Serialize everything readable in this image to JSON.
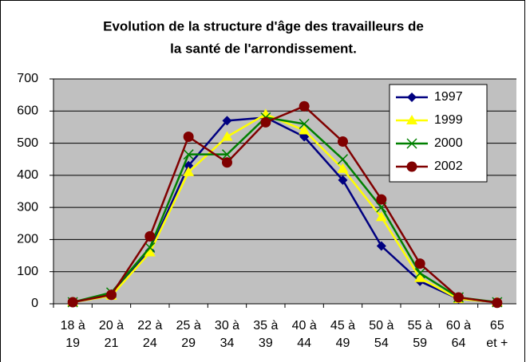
{
  "chart_data": {
    "type": "line",
    "title": [
      "Evolution de la structure d'âge des travailleurs de",
      "la santé de l'arrondissement."
    ],
    "categories": [
      "18 à 19",
      "20 à 21",
      "22 à 24",
      "25 à 29",
      "30 à 34",
      "35 à 39",
      "40 à 44",
      "45 à 49",
      "50 à 54",
      "55 à 59",
      "60 à 64",
      "65 et +"
    ],
    "series": [
      {
        "name": "1997",
        "color": "#000080",
        "marker": "diamond",
        "values": [
          5,
          30,
          165,
          430,
          570,
          580,
          520,
          385,
          180,
          70,
          15,
          5
        ]
      },
      {
        "name": "1999",
        "color": "#ffff00",
        "marker": "triangle",
        "values": [
          5,
          25,
          160,
          410,
          520,
          590,
          540,
          420,
          270,
          80,
          15,
          5
        ]
      },
      {
        "name": "2000",
        "color": "#008000",
        "marker": "x",
        "values": [
          5,
          35,
          175,
          465,
          465,
          580,
          560,
          450,
          300,
          95,
          20,
          5
        ]
      },
      {
        "name": "2002",
        "color": "#800000",
        "marker": "circle",
        "values": [
          5,
          28,
          210,
          520,
          440,
          565,
          615,
          505,
          325,
          125,
          20,
          3
        ]
      }
    ],
    "ylim": [
      0,
      700
    ],
    "yticks": [
      0,
      100,
      200,
      300,
      400,
      500,
      600,
      700
    ],
    "grid": true,
    "legend": "top-right"
  }
}
